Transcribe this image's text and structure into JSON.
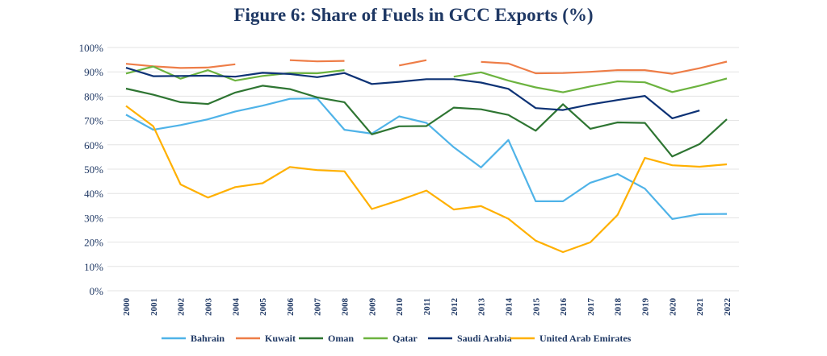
{
  "chart_data": {
    "type": "line",
    "title": "Figure 6: Share of Fuels in GCC Exports (%)",
    "xlabel": "",
    "ylabel": "",
    "ylim": [
      0,
      100
    ],
    "yticks": [
      "0%",
      "10%",
      "20%",
      "30%",
      "40%",
      "50%",
      "60%",
      "70%",
      "80%",
      "90%",
      "100%"
    ],
    "grid": true,
    "legend_position": "bottom",
    "categories": [
      "2000",
      "2001",
      "2002",
      "2003",
      "2004",
      "2005",
      "2006",
      "2007",
      "2008",
      "2009",
      "2010",
      "2011",
      "2012",
      "2013",
      "2014",
      "2015",
      "2016",
      "2017",
      "2018",
      "2019",
      "2020",
      "2021",
      "2022"
    ],
    "series": [
      {
        "name": "Bahrain",
        "color": "#4fb3e8",
        "values": [
          72.4,
          66.2,
          68.1,
          70.5,
          73.7,
          76.1,
          78.9,
          79.1,
          66.2,
          64.6,
          71.7,
          69.0,
          59.0,
          50.7,
          62.0,
          36.8,
          36.8,
          44.4,
          48.0,
          42.0,
          29.5,
          31.5,
          31.6
        ]
      },
      {
        "name": "Kuwait",
        "color": "#ee7d47",
        "values": [
          93.3,
          92.3,
          91.6,
          91.8,
          93.1,
          null,
          94.8,
          94.3,
          94.5,
          null,
          92.6,
          94.8,
          null,
          94.1,
          93.4,
          89.4,
          89.5,
          90.0,
          90.7,
          90.7,
          89.2,
          91.5,
          94.2
        ]
      },
      {
        "name": "Oman",
        "color": "#2e7532",
        "values": [
          83.1,
          80.6,
          77.5,
          76.8,
          81.5,
          84.3,
          82.9,
          79.5,
          77.5,
          64.3,
          67.6,
          67.7,
          75.3,
          74.6,
          72.3,
          65.8,
          76.7,
          66.6,
          69.2,
          69.0,
          55.2,
          60.3,
          70.5
        ]
      },
      {
        "name": "Qatar",
        "color": "#6cb33f",
        "values": [
          89.3,
          92.2,
          87.2,
          90.7,
          86.4,
          88.3,
          89.5,
          89.4,
          90.7,
          null,
          null,
          null,
          88.0,
          89.8,
          86.4,
          83.6,
          81.6,
          84.0,
          86.1,
          85.7,
          81.7,
          84.3,
          87.3
        ]
      },
      {
        "name": "Saudi Arabia",
        "color": "#0d3275",
        "values": [
          91.7,
          88.2,
          88.3,
          88.4,
          88.0,
          89.6,
          89.1,
          87.8,
          89.5,
          85.0,
          85.9,
          87.0,
          87.0,
          85.6,
          83.0,
          75.1,
          74.3,
          76.6,
          78.4,
          80.1,
          70.9,
          74.1,
          null
        ]
      },
      {
        "name": "United Arab Emirates",
        "color": "#ffb000",
        "values": [
          76.0,
          67.6,
          43.7,
          38.3,
          42.6,
          44.2,
          50.9,
          49.6,
          49.1,
          33.6,
          37.2,
          41.2,
          33.4,
          34.8,
          29.6,
          20.6,
          15.9,
          19.9,
          31.2,
          54.6,
          51.6,
          51.0,
          52.0
        ]
      }
    ]
  }
}
